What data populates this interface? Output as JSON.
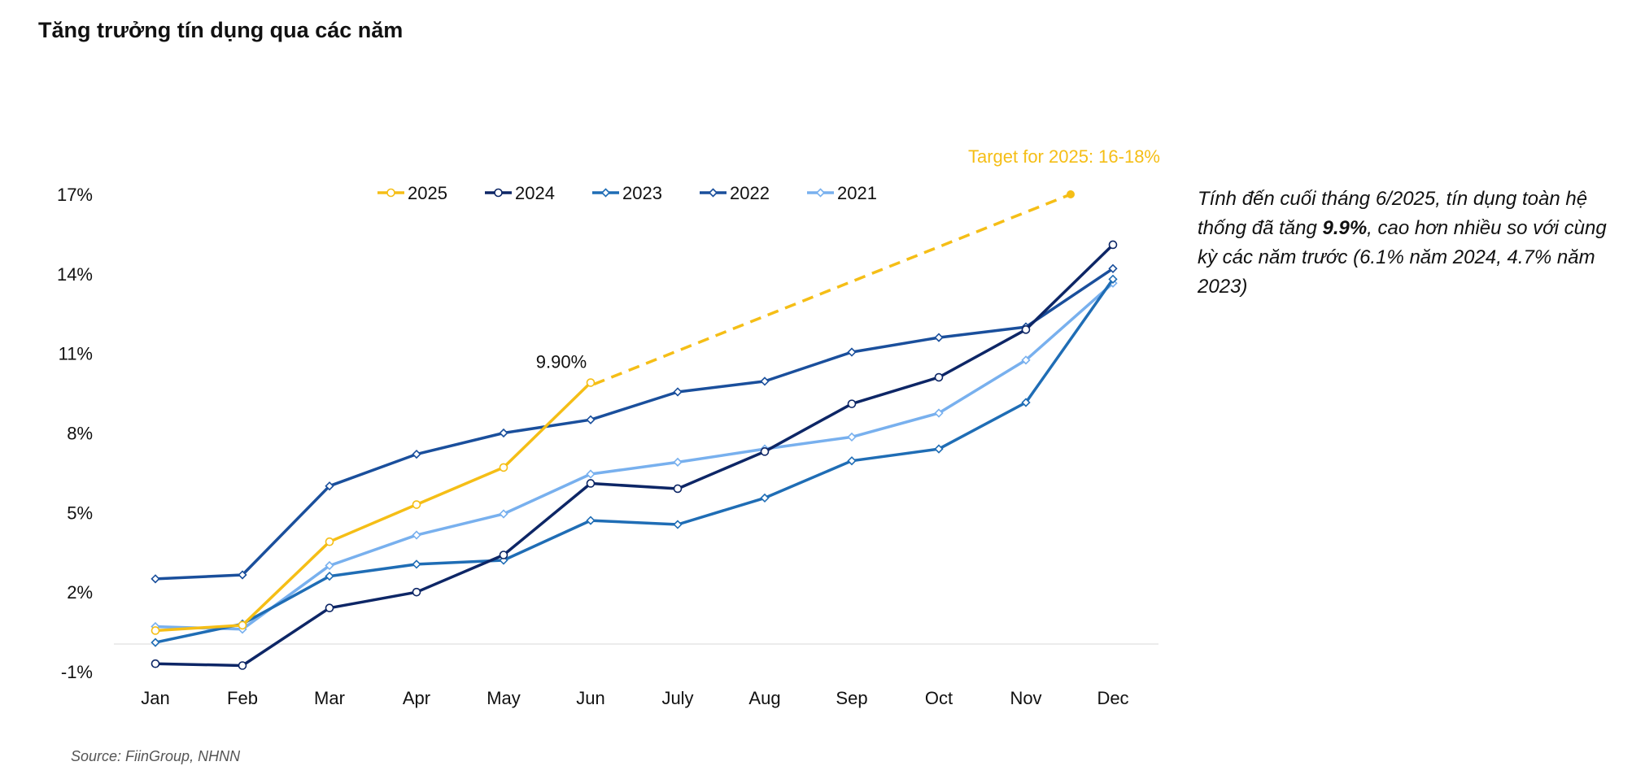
{
  "page": {
    "title": "Tăng trưởng tín dụng qua các năm",
    "source": "Source: FiinGroup, NHNN",
    "annotation": {
      "before": "Tính đến cuối tháng 6/2025, tín dụng toàn hệ thống đã tăng ",
      "highlight": "9.9%",
      "after": ", cao hơn nhiều so với cùng kỳ các năm trước (6.1% năm 2024, 4.7% năm 2023)"
    }
  },
  "chart_data": {
    "type": "line",
    "title": "Tăng trưởng tín dụng qua các năm",
    "xlabel": "",
    "ylabel": "",
    "categories": [
      "Jan",
      "Feb",
      "Mar",
      "Apr",
      "May",
      "Jun",
      "July",
      "Aug",
      "Sep",
      "Oct",
      "Nov",
      "Dec"
    ],
    "y_ticks": [
      -1,
      2,
      5,
      8,
      11,
      14,
      17
    ],
    "y_tick_labels": [
      "-1%",
      "2%",
      "5%",
      "8%",
      "11%",
      "14%",
      "17%"
    ],
    "ylim": [
      -1,
      17
    ],
    "grid": false,
    "legend_position": "top",
    "series": [
      {
        "name": "2025",
        "color": "#F5BE16",
        "marker": "circle",
        "values": [
          0.55,
          0.75,
          3.9,
          5.3,
          6.7,
          9.9,
          null,
          null,
          null,
          null,
          null,
          null
        ]
      },
      {
        "name": "2024",
        "color": "#0D2666",
        "marker": "circle",
        "values": [
          -0.7,
          -0.77,
          1.4,
          2.0,
          3.4,
          6.1,
          5.9,
          7.3,
          9.1,
          10.1,
          11.9,
          15.1
        ]
      },
      {
        "name": "2023",
        "color": "#1F6DB5",
        "marker": "diamond",
        "values": [
          0.1,
          0.8,
          2.6,
          3.05,
          3.2,
          4.7,
          4.55,
          5.55,
          6.95,
          7.4,
          9.15,
          13.8
        ]
      },
      {
        "name": "2022",
        "color": "#1A4F9C",
        "marker": "diamond",
        "values": [
          2.5,
          2.65,
          6.0,
          7.2,
          8.0,
          8.5,
          9.55,
          9.95,
          11.05,
          11.6,
          12.0,
          14.2
        ]
      },
      {
        "name": "2021",
        "color": "#78B0EE",
        "marker": "diamond",
        "values": [
          0.7,
          0.6,
          3.0,
          4.15,
          4.95,
          6.45,
          6.9,
          7.4,
          7.85,
          8.75,
          10.75,
          13.65
        ]
      }
    ],
    "target": {
      "label": "Target for 2025: 16-18%",
      "start_category": "Jun",
      "start_value": 9.9,
      "end_value": 17,
      "color": "#F5BE16"
    },
    "data_labels": [
      {
        "series": "2025",
        "category": "Jun",
        "text": "9.90%"
      }
    ]
  }
}
